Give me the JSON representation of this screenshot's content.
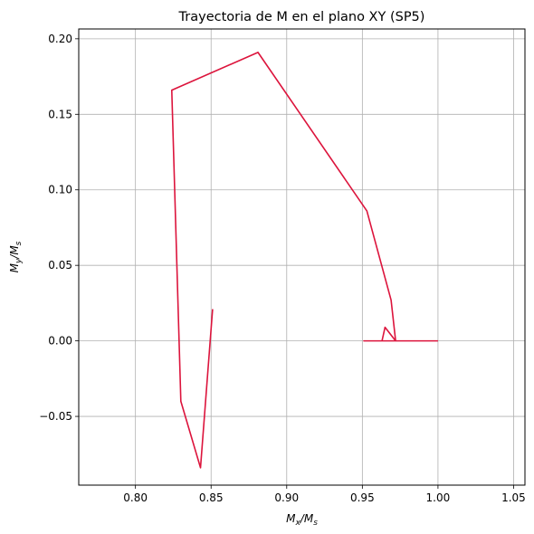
{
  "chart_data": {
    "type": "line",
    "title": "Trayectoria de M en el plano XY (SP5)",
    "xlabel": {
      "main": "M",
      "sub1": "x",
      "mid": "/M",
      "sub2": "s"
    },
    "ylabel": {
      "main": "M",
      "sub1": "y",
      "mid": "/M",
      "sub2": "s"
    },
    "xlim": [
      0.7625,
      1.0575
    ],
    "ylim": [
      -0.0955,
      0.2065
    ],
    "xticks": [
      0.8,
      0.85,
      0.9,
      0.95,
      1.0,
      1.05
    ],
    "xtick_labels": [
      "0.80",
      "0.85",
      "0.90",
      "0.95",
      "1.00",
      "1.05"
    ],
    "yticks": [
      -0.05,
      0.0,
      0.05,
      0.1,
      0.15,
      0.2
    ],
    "ytick_labels": [
      "−0.05",
      "0.00",
      "0.05",
      "0.10",
      "0.15",
      "0.20"
    ],
    "grid": true,
    "line_color": "#dc143c",
    "grid_color": "#b0b0b0",
    "series": [
      {
        "x": [
          1.0,
          0.985,
          0.975,
          0.951,
          0.963,
          0.965,
          0.972,
          0.969,
          0.953,
          0.881,
          0.824,
          0.83,
          0.843,
          0.851
        ],
        "y": [
          0.0,
          0.0,
          0.0,
          0.0,
          0.0,
          0.009,
          0.0,
          0.027,
          0.086,
          0.191,
          0.166,
          -0.04,
          -0.084,
          0.021
        ]
      }
    ]
  }
}
